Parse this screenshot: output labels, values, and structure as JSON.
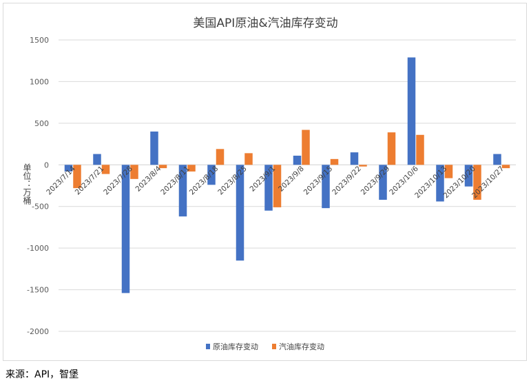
{
  "chart_data": {
    "type": "bar",
    "title": "美国API原油&汽油库存变动",
    "ylabel": "单位：万桶",
    "xlabel": "",
    "ylim": [
      -2000,
      1500
    ],
    "yticks": [
      1500,
      1000,
      500,
      0,
      -500,
      -1000,
      -1500,
      -2000
    ],
    "grid": true,
    "legend_position": "bottom",
    "categories": [
      "2023/7/14",
      "2023/7/21",
      "2023/7/28",
      "2023/8/4",
      "2023/8/11",
      "2023/8/18",
      "2023/8/25",
      "2023/9/1",
      "2023/9/8",
      "2023/9/15",
      "2023/9/22",
      "2023/9/29",
      "2023/10/6",
      "2023/10/13",
      "2023/10/20",
      "2023/10/27"
    ],
    "series": [
      {
        "name": "原油库存变动",
        "color": "#4472c4",
        "values": [
          -80,
          130,
          -1540,
          400,
          -620,
          -240,
          -1150,
          -550,
          110,
          -520,
          150,
          -420,
          1290,
          -440,
          -260,
          130
        ]
      },
      {
        "name": "汽油库存变动",
        "color": "#ed7d31",
        "values": [
          -280,
          -110,
          -170,
          -40,
          -80,
          190,
          140,
          -510,
          420,
          70,
          -20,
          390,
          360,
          -160,
          -420,
          -40
        ]
      }
    ]
  },
  "source_note": "来源：API，智堡"
}
